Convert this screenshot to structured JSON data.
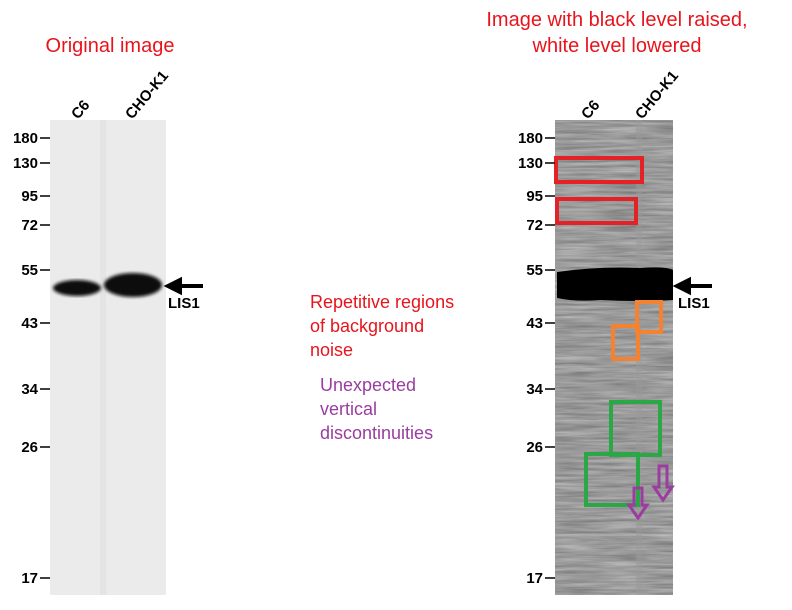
{
  "left_panel": {
    "title": "Original image",
    "lanes": [
      "C6",
      "CHO-K1"
    ],
    "markers": [
      180,
      130,
      95,
      72,
      55,
      43,
      34,
      26,
      17
    ],
    "band_label": "LIS1"
  },
  "right_panel": {
    "title": [
      "Image with black level raised,",
      "white level lowered"
    ],
    "lanes": [
      "C6",
      "CHO-K1"
    ],
    "markers": [
      180,
      130,
      95,
      72,
      55,
      43,
      34,
      26,
      17
    ],
    "band_label": "LIS1"
  },
  "annotations": {
    "repetitive": [
      "Repetitive regions",
      "of background",
      "noise"
    ],
    "vertical": [
      "Unexpected",
      "vertical",
      "discontinuities"
    ]
  }
}
